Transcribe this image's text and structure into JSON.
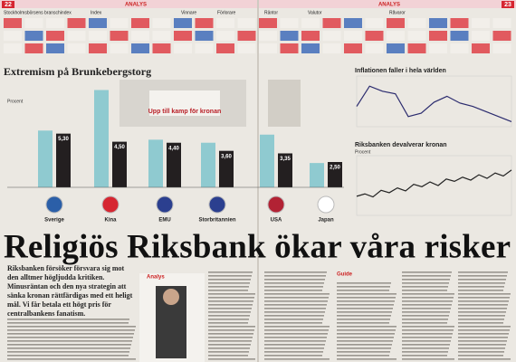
{
  "header": {
    "left_page": "22",
    "left_section": "ANALYS",
    "right_section": "ANALYS",
    "right_page": "23"
  },
  "market_table": {
    "columns": [
      "Stockholmsbörsens branschindex",
      "Index",
      "Vinnare",
      "Förlorare",
      "Räntor",
      "Valutor",
      "Råvaror"
    ]
  },
  "infographic": {
    "title": "Extremism på Brunkebergstorg",
    "unit": "Procent",
    "categories": [
      "Sverige",
      "Kina",
      "EMU",
      "Storbritannien",
      "USA",
      "Japan"
    ],
    "ylim": [
      0,
      10
    ],
    "series": [
      {
        "color": "#8fcad0",
        "values": [
          5.6,
          9.6,
          4.7,
          4.4,
          5.2,
          2.4
        ]
      },
      {
        "color": "#231f20",
        "values": [
          5.3,
          4.5,
          4.4,
          3.6,
          3.35,
          2.5
        ],
        "value_labels": [
          "5,30",
          "4,50",
          "4,40",
          "3,60",
          "3,35",
          "2,50"
        ]
      }
    ]
  },
  "newspaper_clip": "Upp till kamp för kronan",
  "inflation_chart": {
    "title": "Inflationen faller i hela världen",
    "ylim": [
      0,
      6
    ],
    "color": "#2b2b6e",
    "values": [
      2.4,
      4.8,
      4.2,
      3.9,
      1.2,
      1.6,
      2.9,
      3.6,
      2.8,
      2.4,
      1.8,
      1.2,
      0.6
    ]
  },
  "krona_chart": {
    "title": "Riksbanken devalverar kronan",
    "unit": "Procent",
    "ylim": [
      0,
      10
    ],
    "color": "#222",
    "values": [
      3.2,
      3.6,
      3.1,
      4.2,
      3.8,
      4.6,
      4.1,
      5.2,
      4.8,
      5.6,
      5.0,
      6.1,
      5.7,
      6.4,
      5.9,
      6.8,
      6.2,
      7.1,
      6.6,
      7.6
    ]
  },
  "article": {
    "headline": "Religiös Riksbank ökar våra risker",
    "lead": "Riksbanken försöker försvara sig mot den alltmer högljudda kritiken. Minusräntan och den nya strategin att sänka kronan rättfärdigas med ett heligt mål. Vi får betala ett högt pris för centralbankens fanatism.",
    "section": "Analys",
    "guide": "Guide"
  }
}
